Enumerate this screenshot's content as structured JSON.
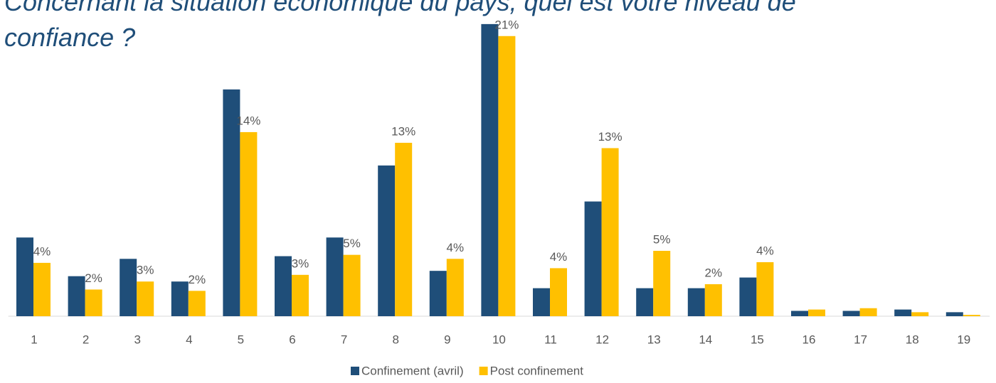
{
  "chart_data": {
    "type": "bar",
    "title": "Concernant la situation économique du pays, quel est votre niveau de confiance ?",
    "categories": [
      "1",
      "2",
      "3",
      "4",
      "5",
      "6",
      "7",
      "8",
      "9",
      "10",
      "11",
      "12",
      "13",
      "14",
      "15",
      "16",
      "17",
      "18",
      "19"
    ],
    "series": [
      {
        "name": "Confinement (avril)",
        "color": "#1f4e79",
        "values": [
          5.9,
          3.0,
          4.3,
          2.6,
          17.0,
          4.5,
          5.9,
          11.3,
          3.4,
          21.9,
          2.1,
          8.6,
          2.1,
          2.1,
          2.9,
          0.4,
          0.4,
          0.5,
          0.3
        ]
      },
      {
        "name": "Post confinement",
        "color": "#ffc000",
        "values": [
          4.0,
          2.0,
          2.6,
          1.9,
          13.8,
          3.1,
          4.6,
          13.0,
          4.3,
          21.0,
          3.6,
          12.6,
          4.9,
          2.4,
          4.05,
          0.5,
          0.6,
          0.3,
          0.1
        ],
        "value_labels": [
          "4%",
          "2%",
          "3%",
          "2%",
          "14%",
          "3%",
          "5%",
          "13%",
          "4%",
          "21%",
          "4%",
          "13%",
          "5%",
          "2%",
          "4%",
          null,
          null,
          null,
          null
        ]
      }
    ],
    "ylim": [
      0,
      22
    ],
    "legend": "bottom"
  }
}
